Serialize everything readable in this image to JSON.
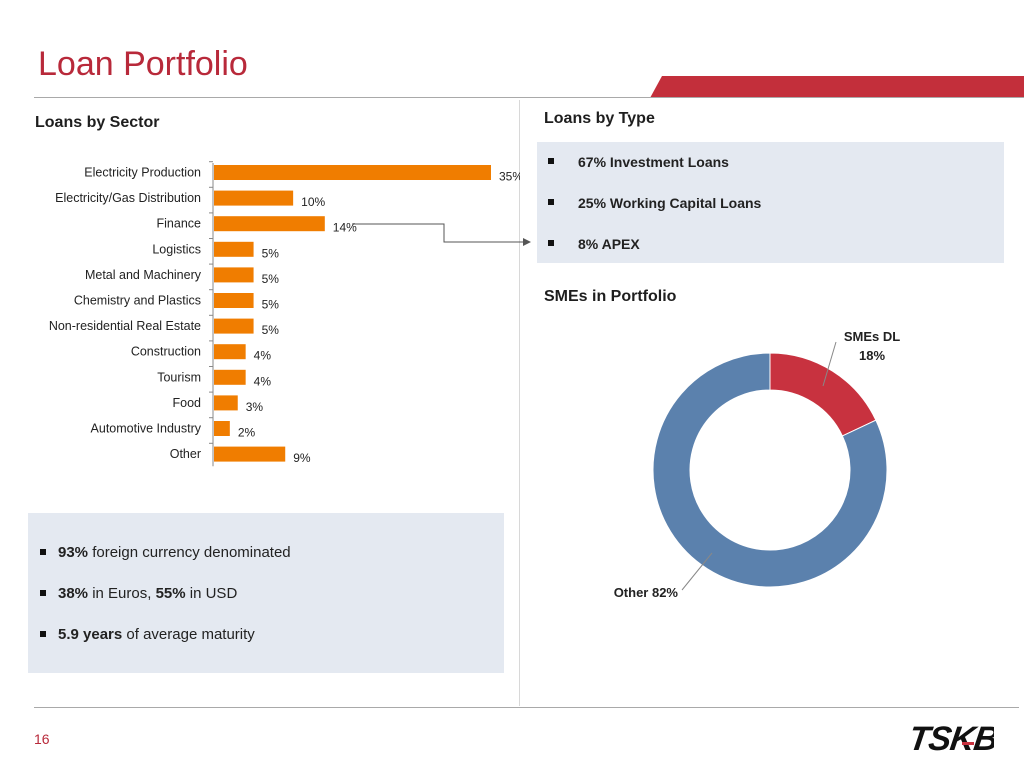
{
  "page": {
    "title": "Loan Portfolio",
    "page_number": "16",
    "logo_text": "TSKB"
  },
  "sector": {
    "heading": "Loans by Sector"
  },
  "types": {
    "heading": "Loans by Type",
    "items": [
      "67% Investment Loans",
      "25% Working Capital Loans",
      "8% APEX"
    ]
  },
  "smes": {
    "heading": "SMEs in Portfolio"
  },
  "notes": {
    "line1": {
      "bold": "93%",
      "text": " foreign currency denominated"
    },
    "line2": {
      "bold1": "38%",
      "text1": " in Euros, ",
      "bold2": "55%",
      "text2": " in USD"
    },
    "line3": {
      "bold": "5.9  years",
      "text": " of average maturity"
    }
  },
  "chart_data": [
    {
      "type": "bar",
      "orientation": "horizontal",
      "categories": [
        "Electricity Production",
        "Electricity/Gas Distribution",
        "Finance",
        "Logistics",
        "Metal and Machinery",
        "Chemistry and Plastics",
        "Non-residential Real Estate",
        "Construction",
        "Tourism",
        "Food",
        "Automotive Industry",
        "Other"
      ],
      "values": [
        35,
        10,
        14,
        5,
        5,
        5,
        5,
        4,
        4,
        3,
        2,
        9
      ],
      "labels": [
        "35%",
        "10%",
        "14%",
        "5%",
        "5%",
        "5%",
        "5%",
        "4%",
        "4%",
        "3%",
        "2%",
        "9%"
      ],
      "color": "#f07d00",
      "xlim": [
        0,
        35
      ]
    },
    {
      "type": "pie",
      "variant": "donut",
      "slices": [
        {
          "name": "SMEs DL",
          "value": 18,
          "label": "18%",
          "color": "#c8323f"
        },
        {
          "name": "Other",
          "value": 82,
          "label": "Other 82%",
          "color": "#5b81ad"
        }
      ]
    }
  ]
}
